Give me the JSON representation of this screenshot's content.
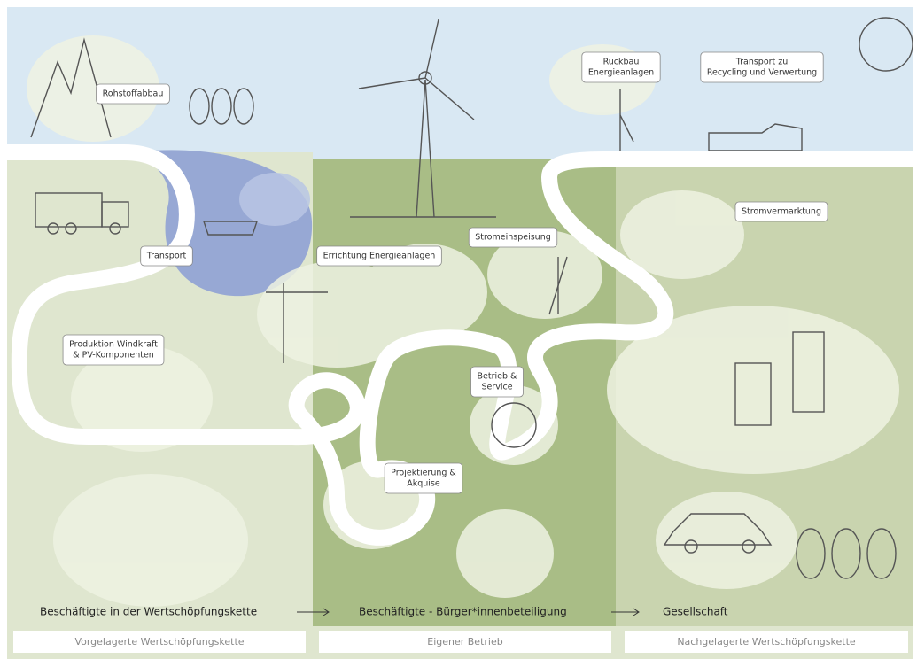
{
  "stations": [
    {
      "label": [
        "Rohstoffabbau"
      ]
    },
    {
      "label": [
        "Transport"
      ]
    },
    {
      "label": [
        "Produktion Windkraft",
        "& PV-Komponenten"
      ]
    },
    {
      "label": [
        "Errichtung Energieanlagen"
      ]
    },
    {
      "label": [
        "Stromeinspeisung"
      ]
    },
    {
      "label": [
        "Betrieb &",
        "Service"
      ]
    },
    {
      "label": [
        "Projektierung &",
        "Akquise"
      ]
    },
    {
      "label": [
        "Rückbau",
        "Energieanlagen"
      ]
    },
    {
      "label": [
        "Transport zu",
        "Recycling und Verwertung"
      ]
    },
    {
      "label": [
        "Stromvermarktung"
      ]
    }
  ],
  "bottom_labels": [
    "Beschäftigte in der Wertschöpfungskette",
    "Beschäftigte - Bürger*innenbeteiligung",
    "Gesellschaft"
  ],
  "sections": [
    "Vorgelagerte Wertschöpfungskette",
    "Eigener Betrieb",
    "Nachgelagerte Wertschöpfungskette"
  ]
}
